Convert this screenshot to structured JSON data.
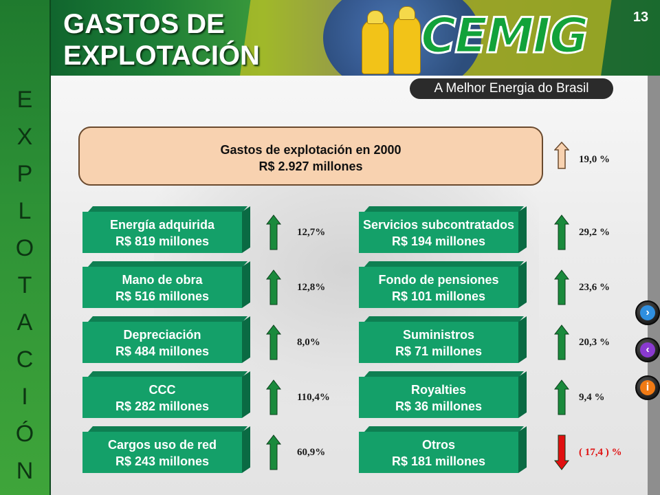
{
  "slide": {
    "title_line1": "GASTOS DE",
    "title_line2": "EXPLOTACIÓN",
    "page_number": "13",
    "side_letters": [
      "E",
      "X",
      "P",
      "L",
      "O",
      "T",
      "A",
      "C",
      "I",
      "Ó",
      "N"
    ]
  },
  "brand": {
    "logo_text": "CEMIG",
    "slogan": "A Melhor Energia do Brasil"
  },
  "summary": {
    "line1": "Gastos de explotación en 2000",
    "line2": "R$ 2.927 millones",
    "change": "19,0 %",
    "direction": "up"
  },
  "left_items": [
    {
      "name": "Energía adquirida",
      "amount": "R$ 819 millones",
      "change": "12,7%",
      "direction": "up"
    },
    {
      "name": "Mano de obra",
      "amount": "R$ 516 millones",
      "change": "12,8%",
      "direction": "up"
    },
    {
      "name": "Depreciación",
      "amount": "R$ 484 millones",
      "change": "8,0%",
      "direction": "up"
    },
    {
      "name": "CCC",
      "amount": "R$ 282 millones",
      "change": "110,4%",
      "direction": "up"
    },
    {
      "name": "Cargos uso de red",
      "amount": "R$ 243 millones",
      "change": "60,9%",
      "direction": "up"
    }
  ],
  "right_items": [
    {
      "name": "Servicios subcontratados",
      "amount": "R$ 194 millones",
      "change": "29,2 %",
      "direction": "up"
    },
    {
      "name": "Fondo de pensiones",
      "amount": "R$ 101 millones",
      "change": "23,6 %",
      "direction": "up"
    },
    {
      "name": "Suministros",
      "amount": "R$ 71 millones",
      "change": "20,3 %",
      "direction": "up"
    },
    {
      "name": "Royalties",
      "amount": "R$ 36 millones",
      "change": "9,4 %",
      "direction": "up"
    },
    {
      "name": "Otros",
      "amount": "R$ 181 millones",
      "change": "( 17,4 ) %",
      "direction": "down"
    }
  ],
  "nav": {
    "next_icon": "chevron-right-icon",
    "prev_icon": "chevron-left-icon",
    "info_icon": "info-icon"
  },
  "colors": {
    "block_green": "#14a069",
    "up_arrow": "#1a8a3c",
    "down_arrow": "#e01010",
    "summary_fill": "#f8d2b0"
  }
}
